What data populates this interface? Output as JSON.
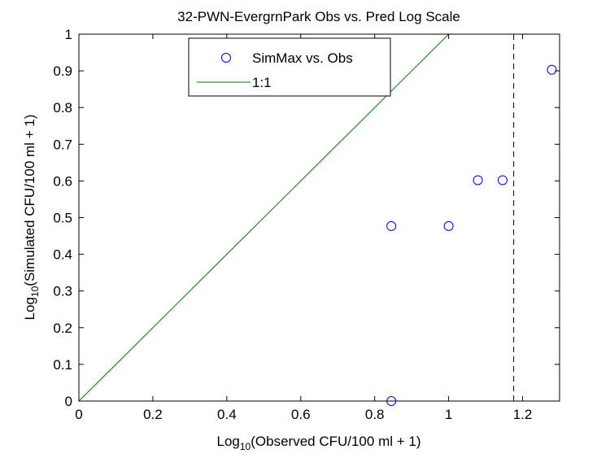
{
  "chart_data": {
    "type": "scatter",
    "title": "32-PWN-EvergrnPark Obs vs. Pred Log Scale",
    "xlabel": {
      "prefix": "Log",
      "sub": "10",
      "suffix": "(Observed CFU/100 ml + 1)"
    },
    "ylabel": {
      "prefix": "Log",
      "sub": "10",
      "suffix": "(Simulated CFU/100 ml + 1)"
    },
    "xlim": [
      0,
      1.3
    ],
    "ylim": [
      0,
      1
    ],
    "xticks": [
      "0",
      "0.2",
      "0.4",
      "0.6",
      "0.8",
      "1",
      "1.2"
    ],
    "xtick_values": [
      0,
      0.2,
      0.4,
      0.6,
      0.8,
      1.0,
      1.2
    ],
    "yticks": [
      "0",
      "0.1",
      "0.2",
      "0.3",
      "0.4",
      "0.5",
      "0.6",
      "0.7",
      "0.8",
      "0.9",
      "1"
    ],
    "ytick_values": [
      0,
      0.1,
      0.2,
      0.3,
      0.4,
      0.5,
      0.6,
      0.7,
      0.8,
      0.9,
      1.0
    ],
    "grid": false,
    "legend_placement": "top-center",
    "series": [
      {
        "name": "SimMax vs. Obs",
        "kind": "markers",
        "color": "#0000ff",
        "x": [
          0.845,
          0.845,
          1.0,
          1.079,
          1.146,
          1.279
        ],
        "y": [
          0.0,
          0.477,
          0.477,
          0.602,
          0.602,
          0.903
        ]
      },
      {
        "name": "1:1",
        "kind": "line",
        "color": "#007f00",
        "x": [
          0,
          1
        ],
        "y": [
          0,
          1
        ]
      }
    ],
    "vertical_line": {
      "x": 1.176,
      "style": "dashed",
      "color": "#000000"
    }
  }
}
